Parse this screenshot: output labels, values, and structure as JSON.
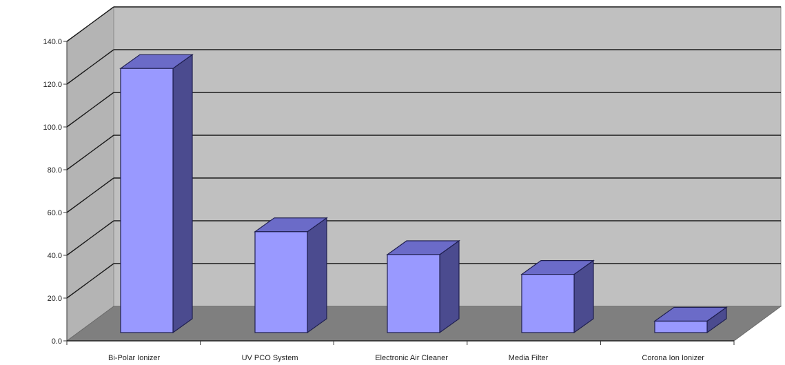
{
  "chart_data": {
    "type": "bar",
    "title": "",
    "xlabel": "",
    "ylabel": "",
    "ylim": [
      0,
      140
    ],
    "y_ticks": [
      "0.0",
      "20.0",
      "40.0",
      "60.0",
      "80.0",
      "100.0",
      "120.0",
      "140.0"
    ],
    "categories": [
      "Bi-Polar Ionizer",
      "UV PCO System",
      "Electronic Air Cleaner",
      "Media Filter",
      "Corona Ion Ionizer"
    ],
    "values": [
      127.0,
      48.5,
      37.5,
      28.0,
      5.5
    ],
    "grid": true,
    "three_d": true,
    "colors": {
      "bar_front": "#9999ff",
      "bar_top": "#6b6bc8",
      "bar_side": "#4b4b8f",
      "bar_edge": "#1f1f4f",
      "back_wall": "#c0c0c0",
      "side_wall": "#b4b4b4",
      "floor": "#7f7f7f",
      "grid": "#1a1a1a"
    }
  }
}
